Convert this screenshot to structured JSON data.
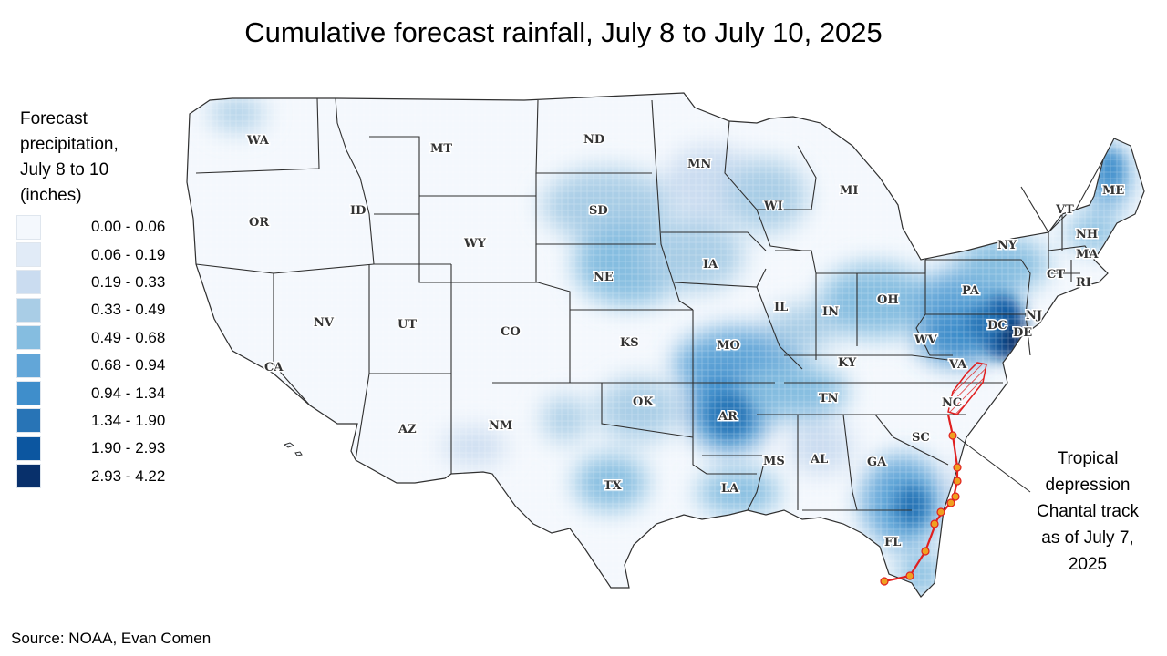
{
  "title": "Cumulative forecast rainfall, July 8 to July 10, 2025",
  "legend": {
    "title_lines": [
      "Forecast",
      "precipitation,",
      "July 8 to 10",
      "(inches)"
    ],
    "items": [
      {
        "label": "0.00 - 0.06",
        "color": "#f4f8fd"
      },
      {
        "label": "0.06 - 0.19",
        "color": "#e1ebf7"
      },
      {
        "label": "0.19 - 0.33",
        "color": "#cadcf0"
      },
      {
        "label": "0.33 - 0.49",
        "color": "#a9cde6"
      },
      {
        "label": "0.49 - 0.68",
        "color": "#85bde0"
      },
      {
        "label": "0.68 - 0.94",
        "color": "#62a6d8"
      },
      {
        "label": "0.94 - 1.34",
        "color": "#3f8ecb"
      },
      {
        "label": "1.34 - 1.90",
        "color": "#2874b6"
      },
      {
        "label": "1.90 - 2.93",
        "color": "#0c56a0"
      },
      {
        "label": "2.93 - 4.22",
        "color": "#08306b"
      }
    ]
  },
  "states": {
    "WA": "WA",
    "OR": "OR",
    "CA": "CA",
    "ID": "ID",
    "NV": "NV",
    "MT": "MT",
    "WY": "WY",
    "UT": "UT",
    "AZ": "AZ",
    "CO": "CO",
    "NM": "NM",
    "ND": "ND",
    "SD": "SD",
    "NE": "NE",
    "KS": "KS",
    "OK": "OK",
    "TX": "TX",
    "MN": "MN",
    "IA": "IA",
    "MO": "MO",
    "AR": "AR",
    "LA": "LA",
    "WI": "WI",
    "IL": "IL",
    "MI": "MI",
    "IN": "IN",
    "OH": "OH",
    "KY": "KY",
    "TN": "TN",
    "MS": "MS",
    "AL": "AL",
    "GA": "GA",
    "FL": "FL",
    "SC": "SC",
    "NC": "NC",
    "VA": "VA",
    "WV": "WV",
    "PA": "PA",
    "NY": "NY",
    "VT": "VT",
    "NH": "NH",
    "ME": "ME",
    "MA": "MA",
    "CT": "CT",
    "RI": "RI",
    "NJ": "NJ",
    "DE": "DE",
    "DC": "DC"
  },
  "annotation": {
    "lines": [
      "Tropical",
      "depression",
      "Chantal track",
      "as of July 7,",
      "2025"
    ]
  },
  "source": "Source: NOAA, Evan Comen",
  "colors": {
    "track": "#e02020",
    "track_point_fill": "#f0a020",
    "state_border": "#303030"
  }
}
